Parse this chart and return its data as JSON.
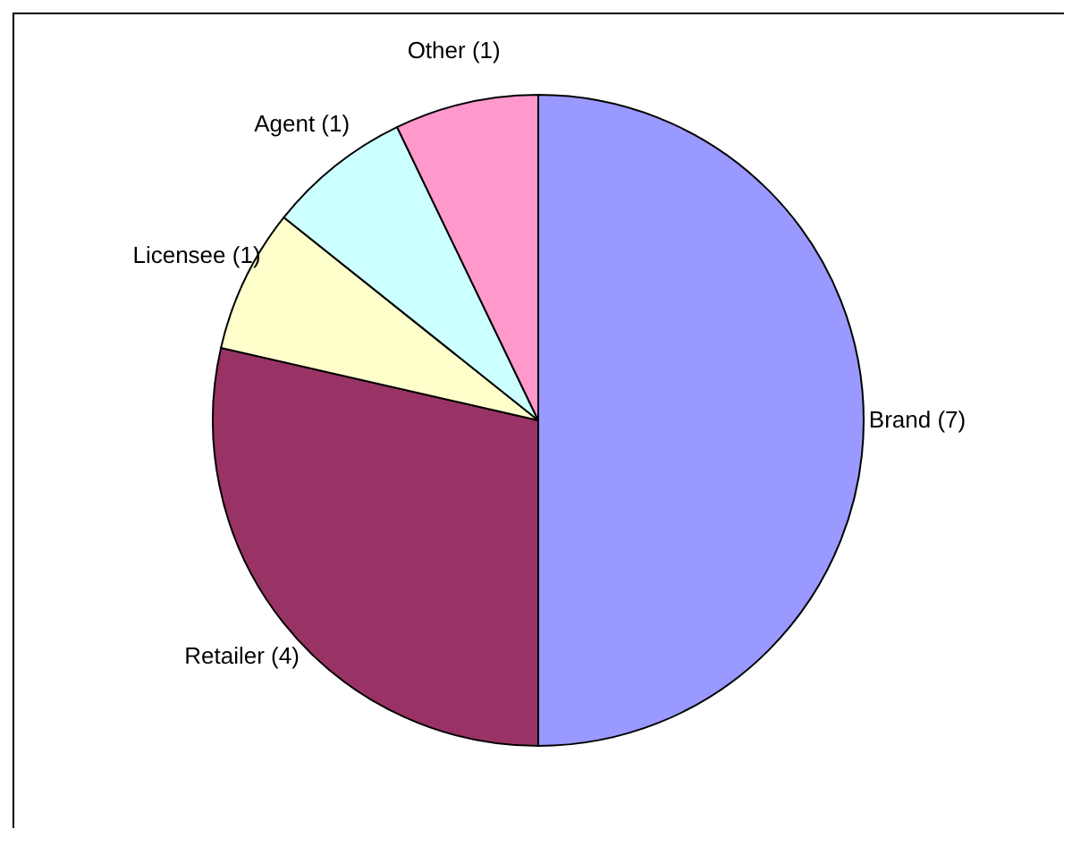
{
  "chart_data": {
    "type": "pie",
    "categories": [
      "Brand (7)",
      "Retailer (4)",
      "Licensee (1)",
      "Agent (1)",
      "Other (1)"
    ],
    "values": [
      7,
      4,
      1,
      1,
      1
    ],
    "colors": [
      "#9999ff",
      "#993366",
      "#ffffcc",
      "#ccffff",
      "#ff99cc"
    ]
  }
}
